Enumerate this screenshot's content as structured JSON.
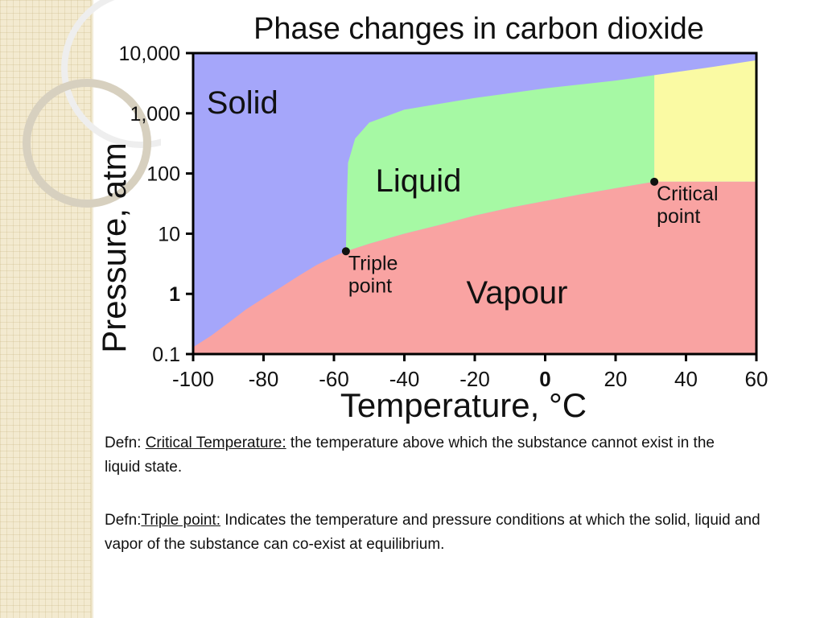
{
  "colors": {
    "solid": "#a5a6fa",
    "liquid": "#a6f9a4",
    "vapour": "#f9a3a2",
    "supercritical": "#fafaa3",
    "axis": "#000000",
    "strip": "#f3ead0"
  },
  "chart_data": {
    "type": "area",
    "title": "Phase changes in carbon dioxide",
    "xlabel": "Temperature, °C",
    "ylabel": "Pressure, atm",
    "xlim": [
      -100,
      60
    ],
    "ylim": [
      0.1,
      10000
    ],
    "yscale": "log",
    "x_ticks": [
      {
        "value": -100,
        "label": "-100",
        "bold": false
      },
      {
        "value": -80,
        "label": "-80",
        "bold": false
      },
      {
        "value": -60,
        "label": "-60",
        "bold": false
      },
      {
        "value": -40,
        "label": "-40",
        "bold": false
      },
      {
        "value": -20,
        "label": "-20",
        "bold": false
      },
      {
        "value": 0,
        "label": "0",
        "bold": true
      },
      {
        "value": 20,
        "label": "20",
        "bold": false
      },
      {
        "value": 40,
        "label": "40",
        "bold": false
      },
      {
        "value": 60,
        "label": "60",
        "bold": false
      }
    ],
    "y_ticks": [
      {
        "value": 10000,
        "label": "10,000",
        "bold": false
      },
      {
        "value": 1000,
        "label": "1,000",
        "bold": false
      },
      {
        "value": 100,
        "label": "100",
        "bold": false
      },
      {
        "value": 10,
        "label": "10",
        "bold": false
      },
      {
        "value": 1,
        "label": "1",
        "bold": true
      },
      {
        "value": 0.1,
        "label": "0.1",
        "bold": false
      }
    ],
    "boundaries": {
      "sublimation": [
        [
          -100,
          0.13
        ],
        [
          -95,
          0.2
        ],
        [
          -90,
          0.33
        ],
        [
          -85,
          0.55
        ],
        [
          -80,
          0.85
        ],
        [
          -75,
          1.3
        ],
        [
          -70,
          2.0
        ],
        [
          -65,
          3.0
        ],
        [
          -60,
          4.2
        ],
        [
          -56.6,
          5.1
        ]
      ],
      "vaporization": [
        [
          -56.6,
          5.1
        ],
        [
          -50,
          6.8
        ],
        [
          -40,
          10
        ],
        [
          -30,
          14
        ],
        [
          -20,
          20
        ],
        [
          -10,
          27
        ],
        [
          0,
          35
        ],
        [
          10,
          45
        ],
        [
          20,
          57
        ],
        [
          31,
          73
        ]
      ],
      "melting": [
        [
          -56.6,
          5.1
        ],
        [
          -56.4,
          30
        ],
        [
          -56,
          150
        ],
        [
          -54,
          380
        ],
        [
          -50,
          700
        ],
        [
          -40,
          1150
        ],
        [
          -20,
          1800
        ],
        [
          0,
          2600
        ],
        [
          20,
          3500
        ],
        [
          31,
          4300
        ],
        [
          45,
          5600
        ],
        [
          60,
          7600
        ]
      ],
      "critical_temperature_line": [
        [
          31,
          73
        ],
        [
          31,
          4300
        ]
      ],
      "critical_pressure_line": [
        [
          31,
          73
        ],
        [
          60,
          73
        ]
      ]
    },
    "regions": [
      {
        "name": "Solid",
        "label_at": [
          -86,
          1000
        ]
      },
      {
        "name": "Liquid",
        "label_at": [
          -36,
          50
        ]
      },
      {
        "name": "Vapour",
        "label_at": [
          -8,
          0.7
        ]
      }
    ],
    "points": [
      {
        "name": "Triple point",
        "label": [
          "Triple",
          "point"
        ],
        "x": -56.6,
        "y": 5.1
      },
      {
        "name": "Critical point",
        "label": [
          "Critical",
          "point"
        ],
        "x": 31,
        "y": 73
      }
    ]
  },
  "definitions": [
    {
      "prefix": "Defn: ",
      "term": "Critical Temperature:",
      "text": " the temperature above which the substance cannot exist in the liquid state."
    },
    {
      "prefix": "Defn:",
      "term": "Triple point:",
      "text": " Indicates the temperature and pressure conditions at which the solid, liquid and vapor of the substance can co-exist at equilibrium."
    }
  ]
}
